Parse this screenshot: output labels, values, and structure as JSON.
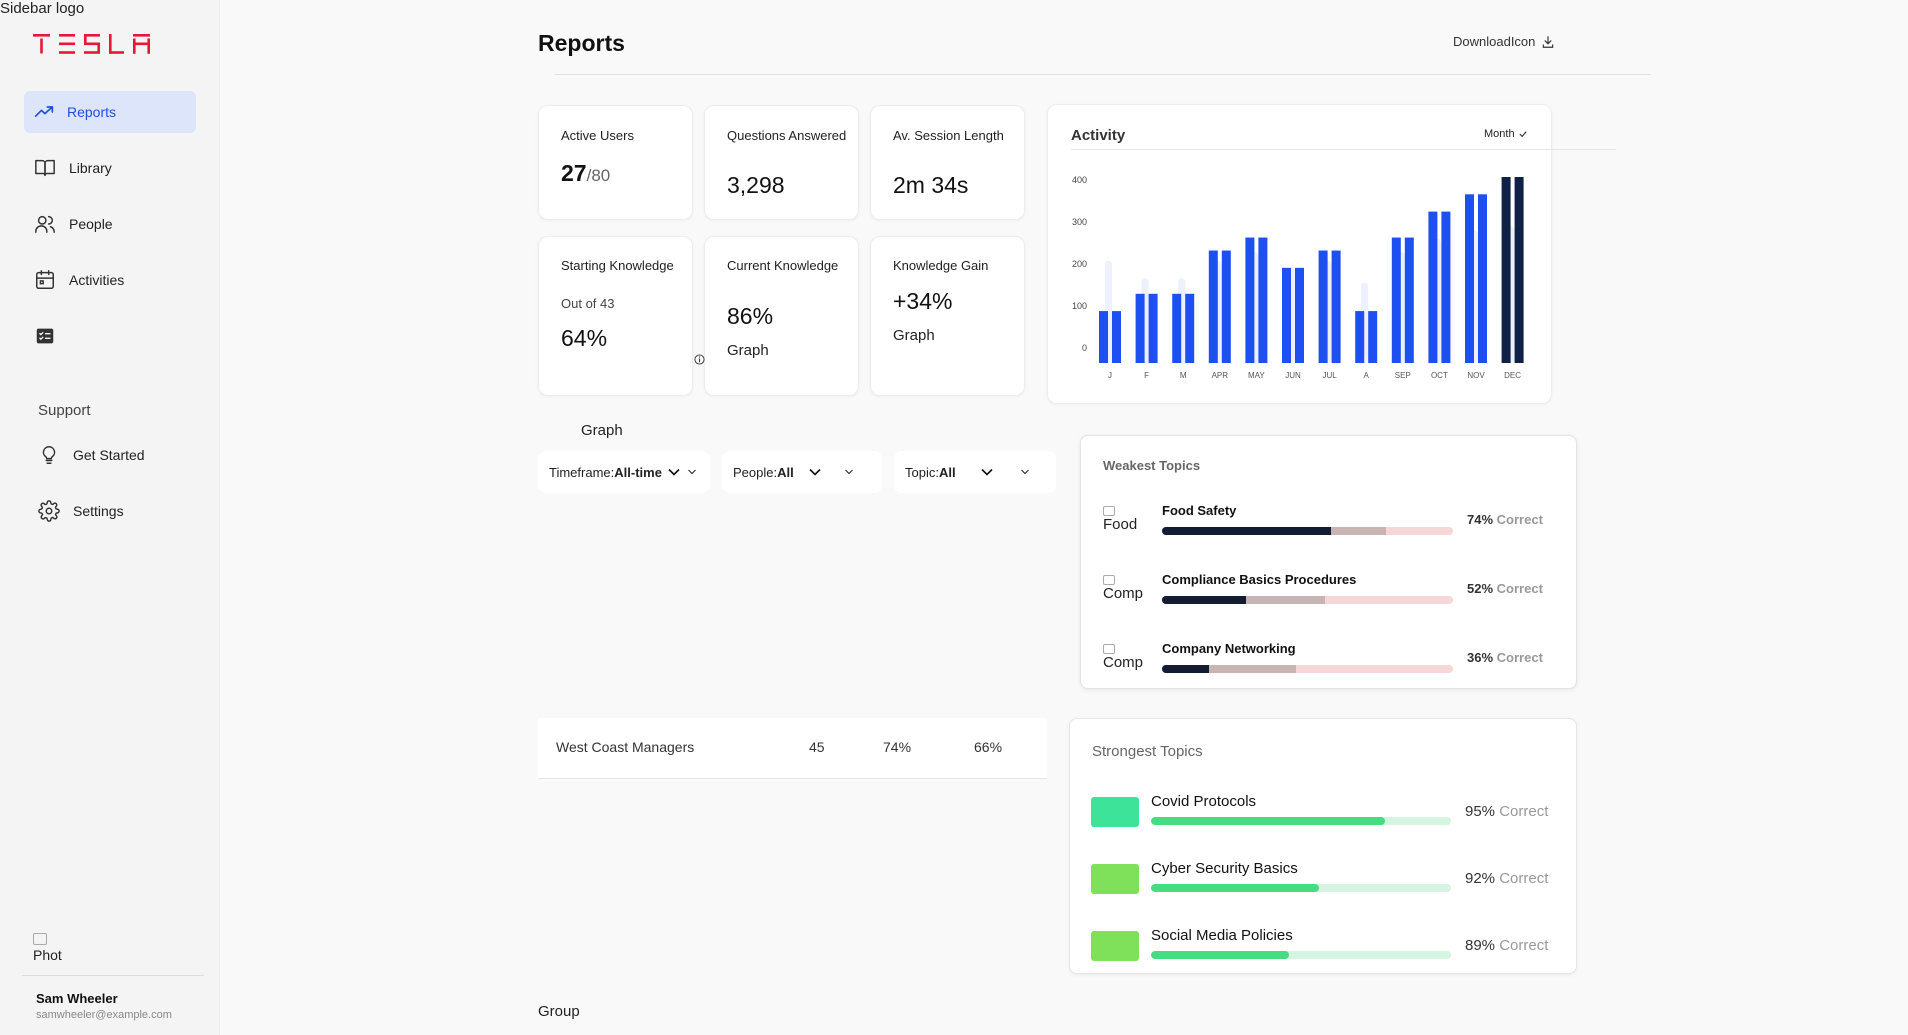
{
  "sidebar": {
    "logo_alt": "Sidebar logo",
    "brand": "TESLA",
    "items": [
      {
        "label": "Reports",
        "icon": "trending-up-icon"
      },
      {
        "label": "Library",
        "icon": "book-icon"
      },
      {
        "label": "People",
        "icon": "people-icon"
      },
      {
        "label": "Activities",
        "icon": "calendar-icon"
      },
      {
        "label": "",
        "icon": "checklist-icon"
      }
    ],
    "support_heading": "Support",
    "support_items": [
      {
        "label": "Get Started",
        "icon": "lightbulb-icon"
      },
      {
        "label": "Settings",
        "icon": "gear-icon"
      }
    ],
    "profile_photo_alt": "Phot",
    "user_name": "Sam Wheeler",
    "user_email": "samwheeler@example.com"
  },
  "header": {
    "title": "Reports",
    "download_label": "DownloadIcon"
  },
  "stats": {
    "active_users": {
      "label": "Active Users",
      "value": "27",
      "suffix": "/80"
    },
    "questions": {
      "label": "Questions Answered",
      "value": "3,298"
    },
    "session": {
      "label": "Av. Session Length",
      "value": "2m 34s"
    },
    "starting": {
      "label": "Starting Knowledge",
      "sub": "Out of 43",
      "value": "64%"
    },
    "current": {
      "label": "Current Knowledge",
      "value": "86%",
      "graph_alt": "Graph"
    },
    "gain": {
      "label": "Knowledge Gain",
      "value": "+34%",
      "graph_alt": "Graph"
    }
  },
  "graph_alt": "Graph",
  "filters": [
    {
      "name": "Timeframe:",
      "value": "All-time"
    },
    {
      "name": "People:",
      "value": "All"
    },
    {
      "name": "Topic:",
      "value": "All"
    }
  ],
  "activity": {
    "title": "Activity",
    "period": "Month"
  },
  "chart_data": {
    "type": "bar",
    "title": "Activity",
    "categories": [
      "JAN",
      "FEB",
      "MAR",
      "APR",
      "MAY",
      "JUN",
      "JUL",
      "AUG",
      "SEP",
      "OCT",
      "NOV",
      "DEC"
    ],
    "category_labels_shown": [
      "J",
      "F",
      "M",
      "APR",
      "MAY",
      "JUN",
      "JUL",
      "A",
      "SEP",
      "OCT",
      "NOV",
      "DEC"
    ],
    "series": [
      {
        "name": "bar-a",
        "values": [
          120,
          160,
          160,
          260,
          290,
          220,
          260,
          120,
          290,
          350,
          390,
          430
        ]
      },
      {
        "name": "bar-b",
        "values": [
          120,
          160,
          160,
          260,
          290,
          220,
          260,
          120,
          290,
          350,
          390,
          430
        ]
      }
    ],
    "highlight_category": "DEC",
    "yticks": [
      0,
      100,
      200,
      300,
      400
    ],
    "ylim": [
      0,
      430
    ],
    "colors": {
      "bar": "#1e4ff0",
      "highlight": "#0f2147",
      "ghost": "#edf1fd"
    }
  },
  "weakest": {
    "title": "Weakest Topics",
    "topics": [
      {
        "name": "Food Safety",
        "alt": "Food",
        "pct": "74%",
        "correct": "Correct",
        "dark": 0.58,
        "mid": 0.77
      },
      {
        "name": "Compliance Basics Procedures",
        "alt": "Compli",
        "pct": "52%",
        "correct": "Correct",
        "dark": 0.29,
        "mid": 0.56
      },
      {
        "name": "Company Networking",
        "alt": "Compa",
        "pct": "36%",
        "correct": "Correct",
        "dark": 0.16,
        "mid": 0.46
      }
    ]
  },
  "table": {
    "row": {
      "name": "West Coast Managers",
      "c1": "45",
      "c2": "74%",
      "c3": "66%"
    }
  },
  "strongest": {
    "title": "Strongest Topics",
    "topics": [
      {
        "name": "Covid Protocols",
        "pct": "95%",
        "correct": "Correct",
        "fill": 0.78,
        "color": "#3ee39a",
        "bar_color": "#46dc82"
      },
      {
        "name": "Cyber Security Basics",
        "pct": "92%",
        "correct": "Correct",
        "fill": 0.56,
        "color": "#7fe15a",
        "bar_color": "#46dc82"
      },
      {
        "name": "Social Media Policies",
        "pct": "89%",
        "correct": "Correct",
        "fill": 0.46,
        "color": "#7fe15a",
        "bar_color": "#46dc82"
      }
    ]
  },
  "footer": {
    "group_alt": "Group"
  },
  "colors": {
    "accent": "#1d4ed8",
    "brand_red": "#e31937"
  }
}
